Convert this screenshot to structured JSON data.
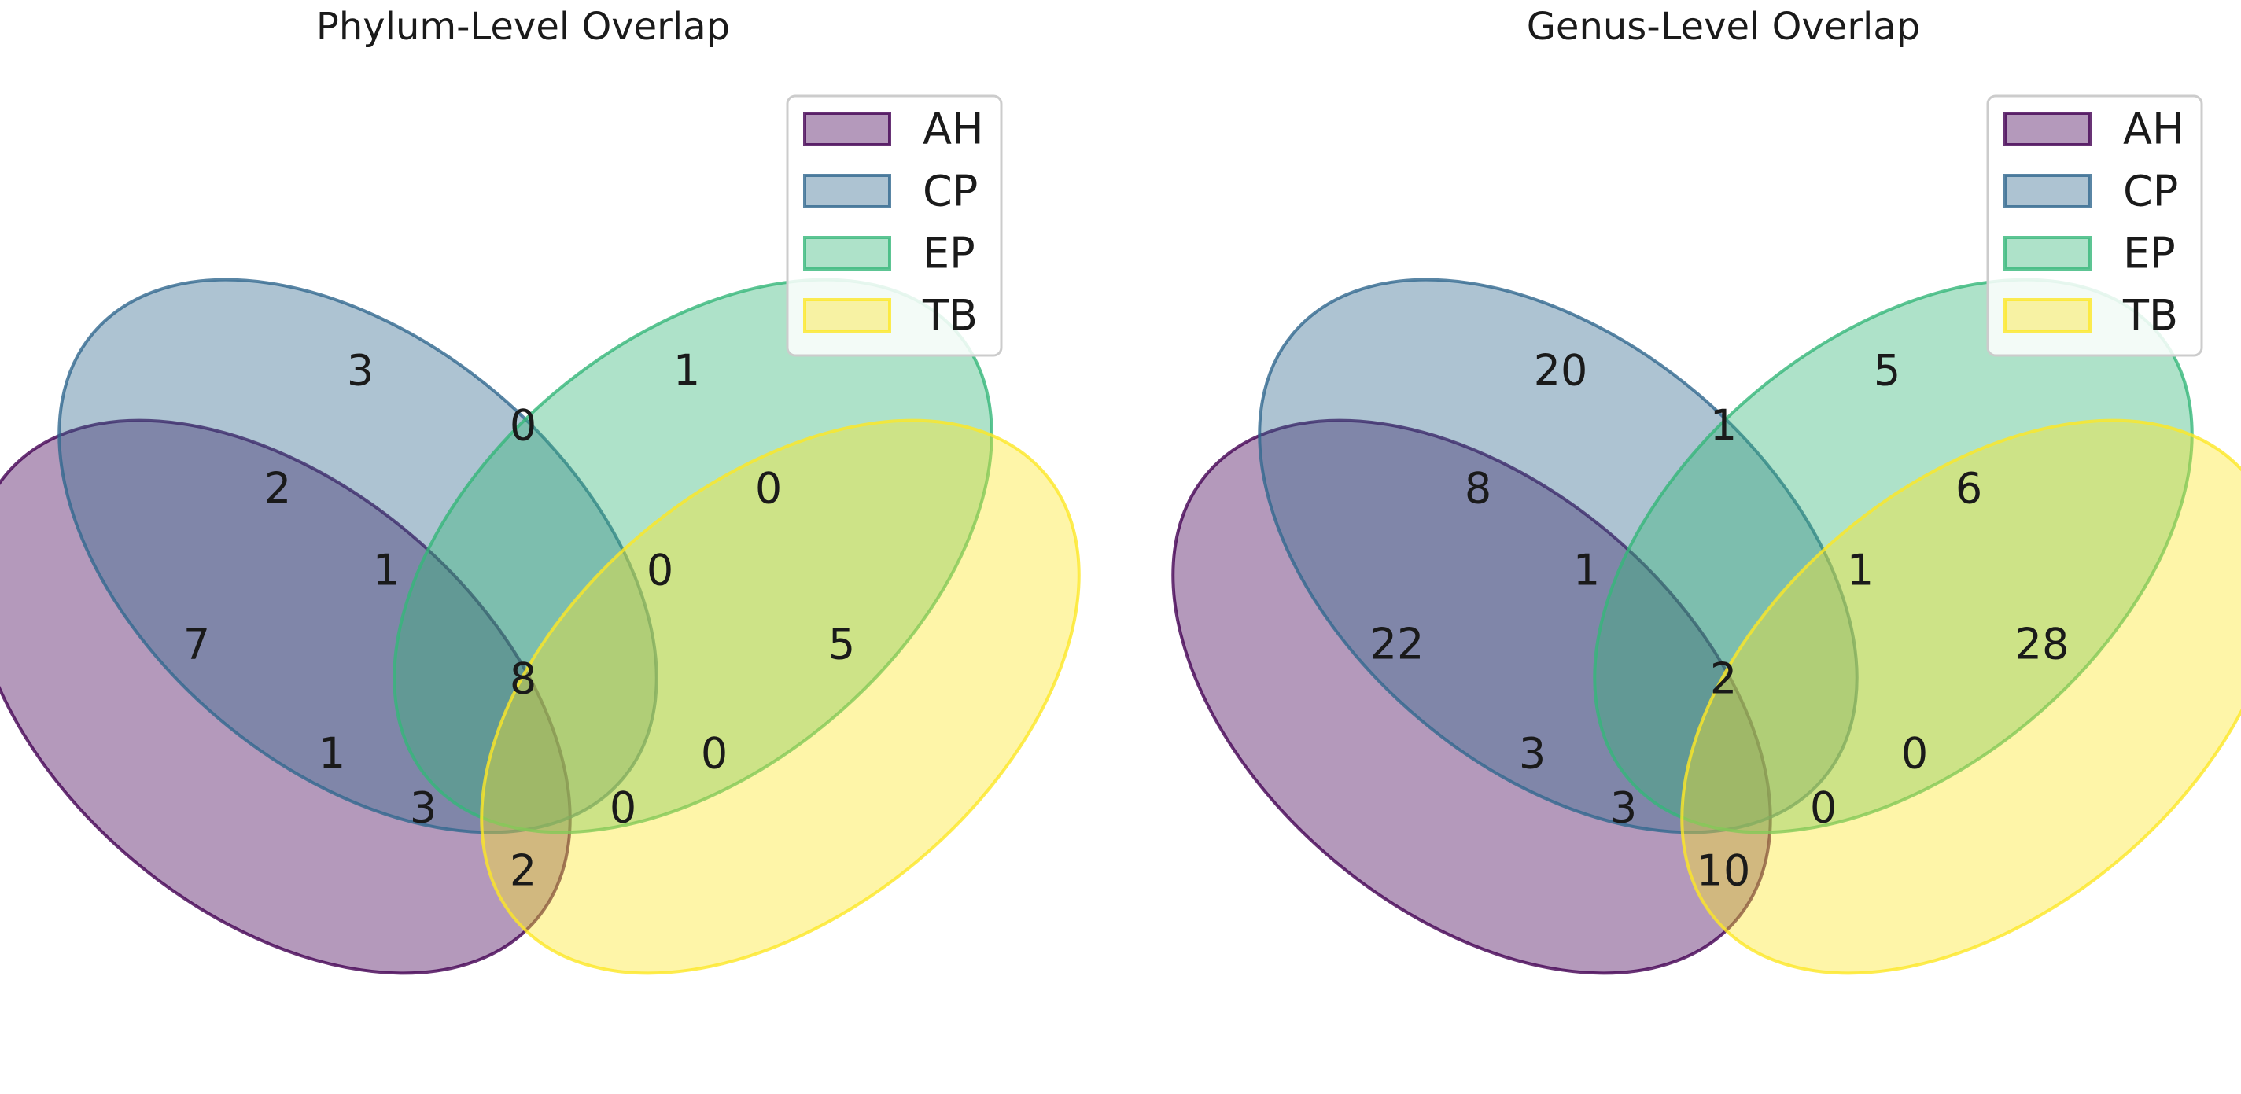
{
  "sets": [
    {
      "name": "AH",
      "color": "#440154"
    },
    {
      "name": "CP",
      "color": "#31688e"
    },
    {
      "name": "EP",
      "color": "#35b779"
    },
    {
      "name": "TB",
      "color": "#fde725"
    }
  ],
  "panels": [
    {
      "title": "Phylum-Level Overlap",
      "regions": {
        "AH": 7,
        "CP": 3,
        "EP": 1,
        "TB": 5,
        "AH_CP": 2,
        "AH_EP": 1,
        "AH_TB": 2,
        "CP_EP": 0,
        "CP_TB": 0,
        "EP_TB": 0,
        "AH_CP_EP": 1,
        "AH_CP_TB": 0,
        "AH_EP_TB": 3,
        "CP_EP_TB": 0,
        "AH_CP_EP_TB": 8
      }
    },
    {
      "title": "Genus-Level Overlap",
      "regions": {
        "AH": 22,
        "CP": 20,
        "EP": 5,
        "TB": 28,
        "AH_CP": 8,
        "AH_EP": 3,
        "AH_TB": 10,
        "CP_EP": 1,
        "CP_TB": 0,
        "EP_TB": 6,
        "AH_CP_EP": 1,
        "AH_CP_TB": 0,
        "AH_EP_TB": 3,
        "CP_EP_TB": 1,
        "AH_CP_EP_TB": 2
      }
    }
  ]
}
